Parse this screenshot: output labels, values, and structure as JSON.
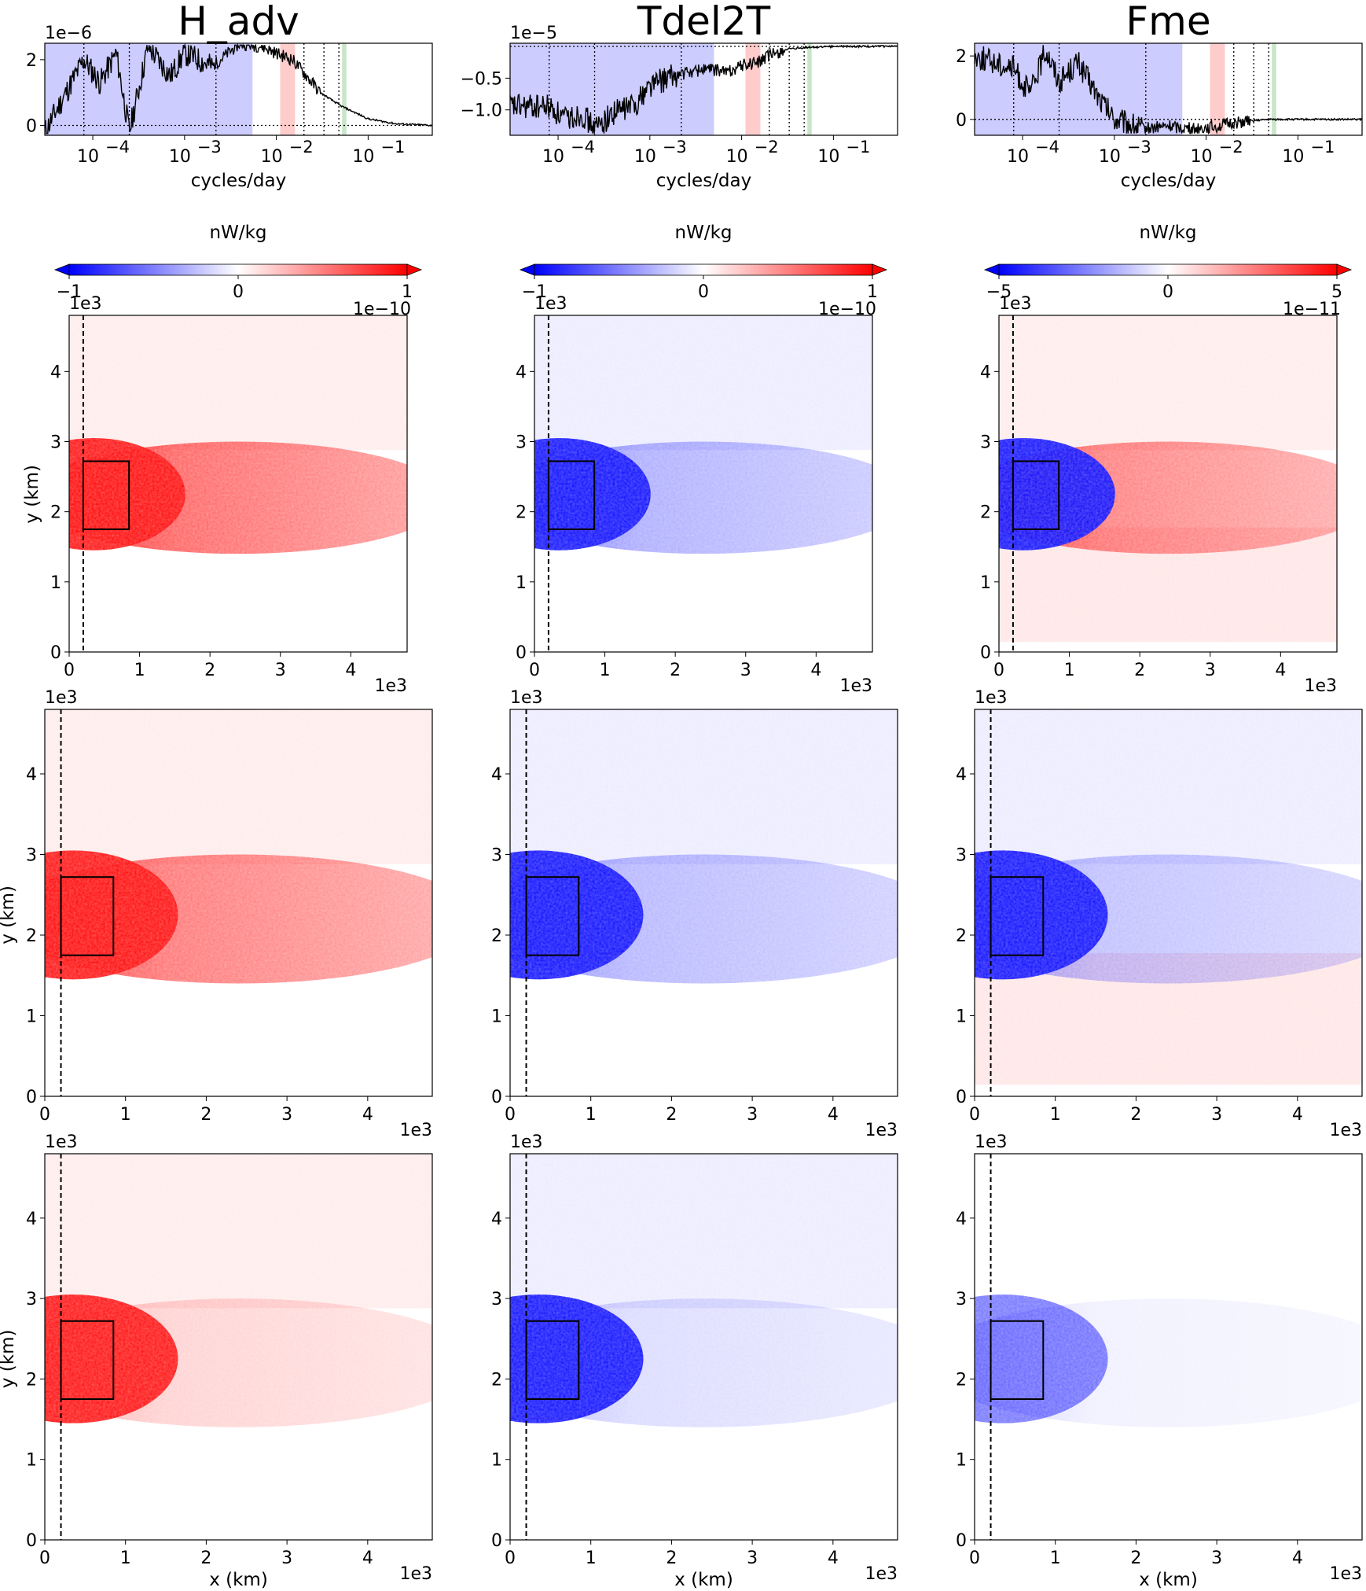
{
  "columns": [
    {
      "title": "H_adv",
      "spectrum_scale": "1e−6",
      "spectrum_yticks": [
        "0",
        "2"
      ],
      "cbar_ticks": [
        "−1",
        "0",
        "1"
      ],
      "cbar_scale": "1e−10",
      "cbar_unit": "nW/kg"
    },
    {
      "title": "Tdel2T",
      "spectrum_scale": "1e−5",
      "spectrum_yticks": [
        "−1.0",
        "−0.5"
      ],
      "cbar_ticks": [
        "−1",
        "0",
        "1"
      ],
      "cbar_scale": "1e−10",
      "cbar_unit": "nW/kg"
    },
    {
      "title": "Fme",
      "spectrum_scale": "",
      "spectrum_yticks": [
        "0",
        "2"
      ],
      "cbar_ticks": [
        "−5",
        "0",
        "5"
      ],
      "cbar_scale": "1e−11",
      "cbar_unit": "nW/kg"
    }
  ],
  "spectrum_xlabel": "cycles/day",
  "spectrum_xticks": [
    "10",
    "10",
    "10",
    "10"
  ],
  "spectrum_xtick_exps": [
    "−4",
    "−3",
    "−2",
    "−1"
  ],
  "map_xlabel": "x (km)",
  "map_ylabel": "y (km)",
  "map_ticks": [
    "0",
    "1",
    "2",
    "3",
    "4"
  ],
  "map_scale": "1e3",
  "colors": {
    "positive": "#ff0000",
    "negative": "#0000ff",
    "blue_band": "#ccccff",
    "red_band": "#ffcccc",
    "green_line": "#c8e6c8"
  },
  "chart_data": [
    {
      "type": "line",
      "title": "H_adv",
      "xlabel": "cycles/day",
      "xscale": "log",
      "xlim": [
        3e-05,
        0.5
      ],
      "ylim": [
        -3e-07,
        2.5e-06
      ],
      "series": [
        {
          "x": [
            3e-05,
            8e-05,
            0.00012,
            0.00018,
            0.00025,
            0.0004,
            0.0007,
            0.001,
            0.002,
            0.004,
            0.007,
            0.01,
            0.015,
            0.02,
            0.03,
            0.05,
            0.1,
            0.2,
            0.5
          ],
          "y": [
            -2e-07,
            2e-06,
            1.3e-06,
            2.2e-06,
            -2e-07,
            2.4e-06,
            1.5e-06,
            2.2e-06,
            1.8e-06,
            2.5e-06,
            2.4e-06,
            2.2e-06,
            2e-06,
            1.6e-06,
            1e-06,
            6e-07,
            2e-07,
            5e-08,
            0.0
          ]
        }
      ]
    },
    {
      "type": "line",
      "title": "Tdel2T",
      "xlabel": "cycles/day",
      "xscale": "log",
      "xlim": [
        3e-05,
        0.5
      ],
      "ylim": [
        -1.4e-05,
        5e-07
      ],
      "series": [
        {
          "x": [
            3e-05,
            8e-05,
            0.00012,
            0.00018,
            0.00025,
            0.0004,
            0.0007,
            0.001,
            0.002,
            0.004,
            0.007,
            0.01,
            0.015,
            0.02,
            0.03,
            0.05,
            0.1,
            0.2,
            0.5
          ],
          "y": [
            -9.5e-06,
            -9.5e-06,
            -1.15e-05,
            -1.05e-05,
            -1.3e-05,
            -1.05e-05,
            -9e-06,
            -6e-06,
            -4.5e-06,
            -3.5e-06,
            -4e-06,
            -3e-06,
            -2.5e-06,
            -1.5e-06,
            -5e-07,
            -2e-07,
            0.0,
            0.0,
            0.0
          ]
        }
      ]
    },
    {
      "type": "line",
      "title": "Fme",
      "xlabel": "cycles/day",
      "xscale": "log",
      "xlim": [
        3e-05,
        0.5
      ],
      "ylim": [
        -0.5,
        2.4
      ],
      "series": [
        {
          "x": [
            3e-05,
            8e-05,
            0.00012,
            0.00018,
            0.00025,
            0.0004,
            0.0007,
            0.001,
            0.002,
            0.004,
            0.007,
            0.01,
            0.015,
            0.02,
            0.03,
            0.05,
            0.1,
            0.2,
            0.5
          ],
          "y": [
            2.0,
            1.6,
            0.8,
            2.2,
            1.2,
            1.8,
            0.6,
            0.0,
            -0.3,
            -0.2,
            -0.3,
            -0.25,
            -0.2,
            -0.1,
            -0.05,
            0.0,
            0.0,
            0.0,
            0.0
          ]
        }
      ]
    }
  ]
}
